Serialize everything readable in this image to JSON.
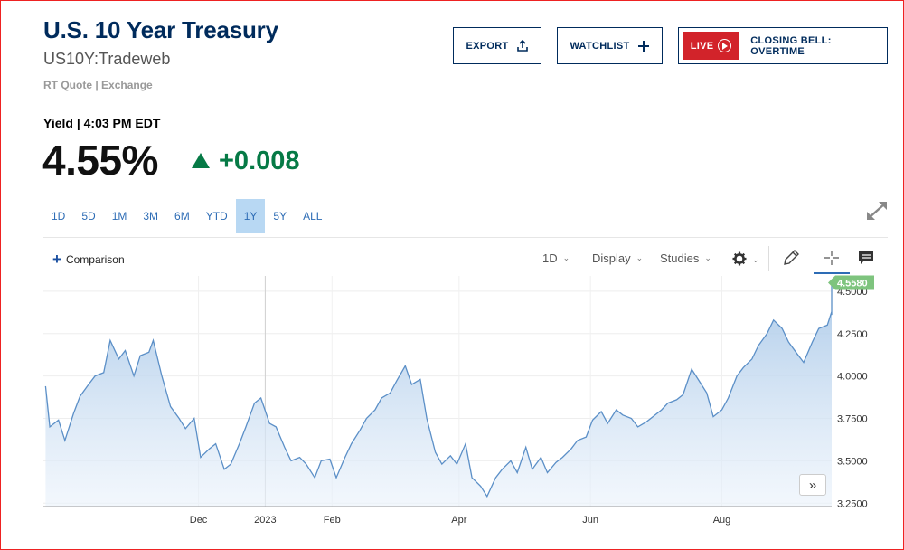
{
  "header": {
    "title": "U.S. 10 Year Treasury",
    "symbol": "US10Y:Tradeweb",
    "subnote": "RT Quote | Exchange"
  },
  "buttons": {
    "export": "EXPORT",
    "watchlist": "WATCHLIST",
    "live": "LIVE",
    "live_label": "CLOSING BELL: OVERTIME"
  },
  "quote": {
    "yield_label": "Yield | 4:03 PM EDT",
    "price": "4.55%",
    "change": "+0.008"
  },
  "ranges": [
    "1D",
    "5D",
    "1M",
    "3M",
    "6M",
    "YTD",
    "1Y",
    "5Y",
    "ALL"
  ],
  "active_range": "1Y",
  "toolbar": {
    "comparison": "Comparison",
    "interval": "1D",
    "display": "Display",
    "studies": "Studies"
  },
  "colors": {
    "brand_navy": "#002b5c",
    "live_red": "#d2232a",
    "positive_green": "#067a46",
    "link_blue": "#2d6cb5",
    "line": "#5b8fc7",
    "last_badge": "#7ec47e"
  },
  "chart_data": {
    "type": "area",
    "y_ticks": [
      "4.5000",
      "4.2500",
      "4.0000",
      "3.7500",
      "3.5000",
      "3.2500"
    ],
    "ylim": [
      3.23,
      4.59
    ],
    "x_ticks": [
      {
        "label": "Dec",
        "x": "2022-12-01"
      },
      {
        "label": "2023",
        "x": "2023-01-01"
      },
      {
        "label": "Feb",
        "x": "2023-02-01"
      },
      {
        "label": "Apr",
        "x": "2023-04-01"
      },
      {
        "label": "Jun",
        "x": "2023-06-01"
      },
      {
        "label": "Aug",
        "x": "2023-08-01"
      }
    ],
    "xlim": [
      "2022-09-20",
      "2023-09-21"
    ],
    "last_value_label": "4.5580",
    "grid": true,
    "series": [
      {
        "points": [
          [
            "2022-09-21",
            3.94
          ],
          [
            "2022-09-23",
            3.7
          ],
          [
            "2022-09-27",
            3.74
          ],
          [
            "2022-09-30",
            3.62
          ],
          [
            "2022-10-04",
            3.78
          ],
          [
            "2022-10-07",
            3.88
          ],
          [
            "2022-10-11",
            3.95
          ],
          [
            "2022-10-14",
            4.0
          ],
          [
            "2022-10-18",
            4.02
          ],
          [
            "2022-10-21",
            4.21
          ],
          [
            "2022-10-25",
            4.1
          ],
          [
            "2022-10-28",
            4.15
          ],
          [
            "2022-11-01",
            4.0
          ],
          [
            "2022-11-04",
            4.12
          ],
          [
            "2022-11-08",
            4.14
          ],
          [
            "2022-11-10",
            4.21
          ],
          [
            "2022-11-14",
            4.0
          ],
          [
            "2022-11-18",
            3.82
          ],
          [
            "2022-11-22",
            3.75
          ],
          [
            "2022-11-25",
            3.69
          ],
          [
            "2022-11-29",
            3.75
          ],
          [
            "2022-12-02",
            3.52
          ],
          [
            "2022-12-06",
            3.57
          ],
          [
            "2022-12-09",
            3.6
          ],
          [
            "2022-12-13",
            3.45
          ],
          [
            "2022-12-16",
            3.48
          ],
          [
            "2022-12-20",
            3.6
          ],
          [
            "2022-12-23",
            3.7
          ],
          [
            "2022-12-27",
            3.84
          ],
          [
            "2022-12-30",
            3.87
          ],
          [
            "2023-01-03",
            3.72
          ],
          [
            "2023-01-06",
            3.7
          ],
          [
            "2023-01-10",
            3.58
          ],
          [
            "2023-01-13",
            3.5
          ],
          [
            "2023-01-17",
            3.52
          ],
          [
            "2023-01-20",
            3.48
          ],
          [
            "2023-01-24",
            3.4
          ],
          [
            "2023-01-27",
            3.5
          ],
          [
            "2023-01-31",
            3.51
          ],
          [
            "2023-02-03",
            3.4
          ],
          [
            "2023-02-07",
            3.52
          ],
          [
            "2023-02-10",
            3.6
          ],
          [
            "2023-02-14",
            3.68
          ],
          [
            "2023-02-17",
            3.75
          ],
          [
            "2023-02-21",
            3.8
          ],
          [
            "2023-02-24",
            3.87
          ],
          [
            "2023-02-28",
            3.9
          ],
          [
            "2023-03-03",
            3.97
          ],
          [
            "2023-03-07",
            4.06
          ],
          [
            "2023-03-10",
            3.95
          ],
          [
            "2023-03-14",
            3.98
          ],
          [
            "2023-03-17",
            3.75
          ],
          [
            "2023-03-21",
            3.55
          ],
          [
            "2023-03-24",
            3.48
          ],
          [
            "2023-03-28",
            3.53
          ],
          [
            "2023-03-31",
            3.48
          ],
          [
            "2023-04-04",
            3.6
          ],
          [
            "2023-04-07",
            3.4
          ],
          [
            "2023-04-11",
            3.35
          ],
          [
            "2023-04-14",
            3.29
          ],
          [
            "2023-04-18",
            3.4
          ],
          [
            "2023-04-21",
            3.45
          ],
          [
            "2023-04-25",
            3.5
          ],
          [
            "2023-04-28",
            3.43
          ],
          [
            "2023-05-02",
            3.58
          ],
          [
            "2023-05-05",
            3.45
          ],
          [
            "2023-05-09",
            3.52
          ],
          [
            "2023-05-12",
            3.43
          ],
          [
            "2023-05-16",
            3.49
          ],
          [
            "2023-05-19",
            3.52
          ],
          [
            "2023-05-23",
            3.57
          ],
          [
            "2023-05-26",
            3.62
          ],
          [
            "2023-05-30",
            3.64
          ],
          [
            "2023-06-02",
            3.74
          ],
          [
            "2023-06-06",
            3.79
          ],
          [
            "2023-06-09",
            3.72
          ],
          [
            "2023-06-13",
            3.8
          ],
          [
            "2023-06-16",
            3.77
          ],
          [
            "2023-06-20",
            3.75
          ],
          [
            "2023-06-23",
            3.7
          ],
          [
            "2023-06-27",
            3.73
          ],
          [
            "2023-06-30",
            3.76
          ],
          [
            "2023-07-04",
            3.8
          ],
          [
            "2023-07-07",
            3.84
          ],
          [
            "2023-07-11",
            3.86
          ],
          [
            "2023-07-14",
            3.89
          ],
          [
            "2023-07-18",
            4.04
          ],
          [
            "2023-07-21",
            3.98
          ],
          [
            "2023-07-25",
            3.9
          ],
          [
            "2023-07-28",
            3.76
          ],
          [
            "2023-08-01",
            3.8
          ],
          [
            "2023-08-04",
            3.87
          ],
          [
            "2023-08-08",
            4.0
          ],
          [
            "2023-08-11",
            4.05
          ],
          [
            "2023-08-15",
            4.1
          ],
          [
            "2023-08-18",
            4.18
          ],
          [
            "2023-08-22",
            4.25
          ],
          [
            "2023-08-25",
            4.33
          ],
          [
            "2023-08-29",
            4.28
          ],
          [
            "2023-09-01",
            4.2
          ],
          [
            "2023-09-05",
            4.13
          ],
          [
            "2023-09-08",
            4.08
          ],
          [
            "2023-09-12",
            4.2
          ],
          [
            "2023-09-15",
            4.28
          ],
          [
            "2023-09-19",
            4.3
          ],
          [
            "2023-09-21",
            4.38
          ],
          [
            "2023-09-25",
            4.36
          ],
          [
            "2023-09-28",
            4.45
          ],
          [
            "2023-10-02",
            4.55
          ]
        ]
      }
    ]
  }
}
